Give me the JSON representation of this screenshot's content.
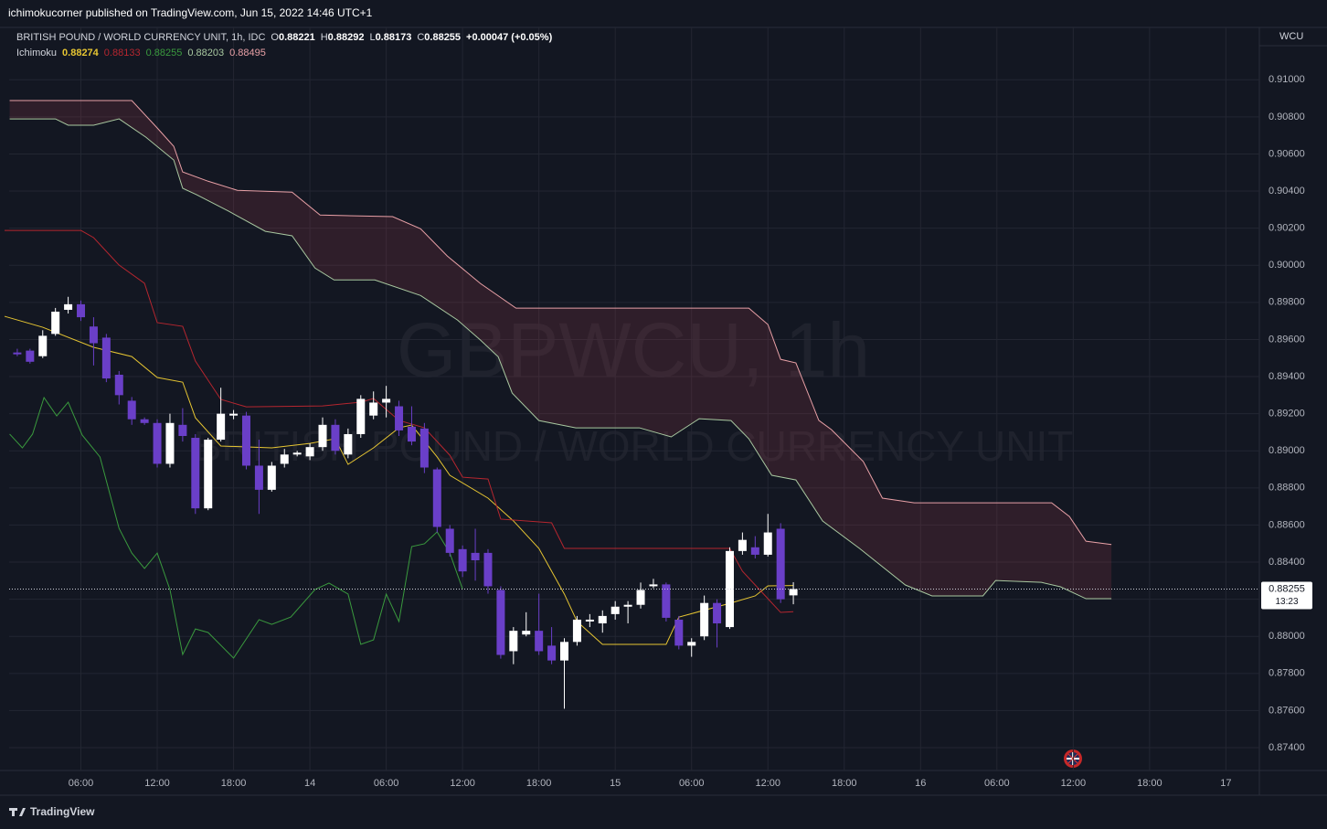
{
  "publisher": "ichimokucorner published on TradingView.com, Jun 15, 2022 14:46 UTC+1",
  "footer": "TradingView",
  "chart_data": {
    "type": "candlestick",
    "symbol": "BRITISH POUND / WORLD CURRENCY UNIT, 1h, IDC",
    "ohlc_legend": [
      {
        "label": "O",
        "value": "0.88221"
      },
      {
        "label": "H",
        "value": "0.88292"
      },
      {
        "label": "L",
        "value": "0.88173"
      },
      {
        "label": "C",
        "value": "0.88255"
      }
    ],
    "change": "+0.00047 (+0.05%)",
    "indicator": {
      "name": "Ichimoku",
      "values": [
        "0.88274",
        "0.88133",
        "0.88255",
        "0.88203",
        "0.88495"
      ]
    },
    "watermark": "GBPWCU, 1h",
    "watermark_subtitle": "BRITISH POUND / WORLD CURRENCY UNIT",
    "currency": "WCU",
    "price_label": "0.88255",
    "countdown": "13:23",
    "up_color": "#ffffff",
    "down_color": "#6a3fc8",
    "cloud_color": "rgba(150,60,75,0.22)",
    "grid": true,
    "xlim": [
      0.36,
      98.63
    ],
    "ylim": [
      0.87277,
      0.91282
    ],
    "xticks": [
      {
        "value": 6,
        "label": "06:00"
      },
      {
        "value": 12,
        "label": "12:00"
      },
      {
        "value": 18,
        "label": "18:00"
      },
      {
        "value": 24,
        "label": "14"
      },
      {
        "value": 30,
        "label": "06:00"
      },
      {
        "value": 36,
        "label": "12:00"
      },
      {
        "value": 42,
        "label": "18:00"
      },
      {
        "value": 48,
        "label": "15"
      },
      {
        "value": 54,
        "label": "06:00"
      },
      {
        "value": 60,
        "label": "12:00"
      },
      {
        "value": 66,
        "label": "18:00"
      },
      {
        "value": 72,
        "label": "16"
      },
      {
        "value": 78,
        "label": "06:00"
      },
      {
        "value": 84,
        "label": "12:00"
      },
      {
        "value": 90,
        "label": "18:00"
      },
      {
        "value": 96,
        "label": "17"
      }
    ],
    "yticks": [
      {
        "value": 0.874,
        "label": "0.87400"
      },
      {
        "value": 0.876,
        "label": "0.87600"
      },
      {
        "value": 0.878,
        "label": "0.87800"
      },
      {
        "value": 0.88,
        "label": "0.88000"
      },
      {
        "value": 0.882,
        "label": "0.88200"
      },
      {
        "value": 0.884,
        "label": "0.88400"
      },
      {
        "value": 0.886,
        "label": "0.88600"
      },
      {
        "value": 0.888,
        "label": "0.88800"
      },
      {
        "value": 0.89,
        "label": "0.89000"
      },
      {
        "value": 0.892,
        "label": "0.89200"
      },
      {
        "value": 0.894,
        "label": "0.89400"
      },
      {
        "value": 0.896,
        "label": "0.89600"
      },
      {
        "value": 0.898,
        "label": "0.89800"
      },
      {
        "value": 0.9,
        "label": "0.90000"
      },
      {
        "value": 0.902,
        "label": "0.90200"
      },
      {
        "value": 0.904,
        "label": "0.90400"
      },
      {
        "value": 0.906,
        "label": "0.90600"
      },
      {
        "value": 0.908,
        "label": "0.90800"
      },
      {
        "value": 0.91,
        "label": "0.91000"
      }
    ],
    "x": [
      1,
      2,
      3,
      4,
      5,
      6,
      7,
      8,
      9,
      10,
      11,
      12,
      13,
      14,
      15,
      16,
      17,
      18,
      19,
      20,
      21,
      22,
      23,
      24,
      25,
      26,
      27,
      28,
      29,
      30,
      31,
      32,
      33,
      34,
      35,
      36,
      37,
      38,
      39,
      40,
      41,
      42,
      43,
      44,
      45,
      46,
      47,
      48,
      49,
      50,
      51,
      52,
      53,
      54,
      55,
      56,
      57,
      58,
      59,
      60,
      61,
      62
    ],
    "open": [
      0.8953,
      0.8954,
      0.8951,
      0.8963,
      0.8976,
      0.8979,
      0.8967,
      0.8961,
      0.8941,
      0.8927,
      0.8917,
      0.8915,
      0.8893,
      0.8914,
      0.8907,
      0.8869,
      0.8906,
      0.8919,
      0.8919,
      0.8892,
      0.8879,
      0.8893,
      0.8898,
      0.8897,
      0.8902,
      0.8914,
      0.8898,
      0.8909,
      0.8919,
      0.8926,
      0.8924,
      0.8913,
      0.8912,
      0.889,
      0.8858,
      0.8847,
      0.8845,
      0.8845,
      0.8825,
      0.8792,
      0.8801,
      0.8803,
      0.8795,
      0.8787,
      0.8797,
      0.8808,
      0.8807,
      0.8812,
      0.8816,
      0.8817,
      0.8827,
      0.8828,
      0.8809,
      0.8795,
      0.88,
      0.8818,
      0.8805,
      0.8846,
      0.8848,
      0.8844,
      0.8858,
      0.88221
    ],
    "high": [
      0.8955,
      0.8955,
      0.8965,
      0.8977,
      0.8983,
      0.8981,
      0.8972,
      0.8963,
      0.8943,
      0.8929,
      0.8918,
      0.8917,
      0.892,
      0.8923,
      0.8909,
      0.8907,
      0.8934,
      0.8922,
      0.8921,
      0.8906,
      0.8894,
      0.8901,
      0.89,
      0.8904,
      0.8918,
      0.8917,
      0.8912,
      0.893,
      0.8932,
      0.8935,
      0.8927,
      0.8924,
      0.8915,
      0.8891,
      0.886,
      0.8849,
      0.8858,
      0.8847,
      0.8827,
      0.8805,
      0.8813,
      0.8823,
      0.8805,
      0.8799,
      0.8811,
      0.8812,
      0.8814,
      0.8819,
      0.8819,
      0.8829,
      0.8831,
      0.8829,
      0.8811,
      0.8799,
      0.8822,
      0.882,
      0.8848,
      0.8856,
      0.8854,
      0.8866,
      0.8861,
      0.88292
    ],
    "low": [
      0.8951,
      0.8947,
      0.895,
      0.8962,
      0.8974,
      0.897,
      0.8946,
      0.8937,
      0.8925,
      0.8914,
      0.8914,
      0.8891,
      0.8891,
      0.8905,
      0.8866,
      0.8868,
      0.8905,
      0.8917,
      0.889,
      0.8866,
      0.8878,
      0.8891,
      0.8897,
      0.8895,
      0.89,
      0.8898,
      0.8896,
      0.8907,
      0.8917,
      0.8918,
      0.8908,
      0.8903,
      0.8888,
      0.8856,
      0.8843,
      0.8832,
      0.883,
      0.8823,
      0.8788,
      0.8785,
      0.88,
      0.879,
      0.8785,
      0.8761,
      0.8795,
      0.8805,
      0.8802,
      0.8809,
      0.8807,
      0.8815,
      0.8826,
      0.8808,
      0.8793,
      0.8789,
      0.8798,
      0.8794,
      0.8804,
      0.8844,
      0.8842,
      0.8843,
      0.8818,
      0.88173
    ],
    "close": [
      0.8952,
      0.8948,
      0.8962,
      0.8975,
      0.8979,
      0.8972,
      0.8958,
      0.8939,
      0.893,
      0.8917,
      0.8915,
      0.8893,
      0.8915,
      0.8908,
      0.8869,
      0.8906,
      0.892,
      0.892,
      0.8892,
      0.8879,
      0.8892,
      0.8898,
      0.8899,
      0.8902,
      0.8914,
      0.89,
      0.8909,
      0.8928,
      0.8926,
      0.8928,
      0.8911,
      0.8905,
      0.8891,
      0.8859,
      0.8845,
      0.8835,
      0.8841,
      0.8827,
      0.879,
      0.8803,
      0.8803,
      0.8792,
      0.8787,
      0.8797,
      0.8809,
      0.8809,
      0.8811,
      0.8816,
      0.8817,
      0.8825,
      0.8828,
      0.881,
      0.8795,
      0.8797,
      0.8818,
      0.8807,
      0.8846,
      0.8852,
      0.8844,
      0.8856,
      0.882,
      0.88255
    ],
    "series": [
      {
        "color": "#e6c532",
        "x": [
          0,
          3,
          7,
          10,
          12,
          14,
          15,
          17,
          21,
          24,
          26,
          27,
          29,
          31,
          32,
          34,
          35,
          38,
          40,
          42,
          44,
          45,
          47,
          52,
          53,
          57,
          59,
          60,
          62
        ],
        "values": [
          0.89725,
          0.89666,
          0.89558,
          0.89508,
          0.89395,
          0.8937,
          0.89178,
          0.89026,
          0.89016,
          0.8904,
          0.89065,
          0.88927,
          0.89016,
          0.89124,
          0.89139,
          0.88967,
          0.88868,
          0.88745,
          0.88622,
          0.88474,
          0.88228,
          0.8808,
          0.87957,
          0.87957,
          0.88104,
          0.88178,
          0.88218,
          0.88272,
          0.88274
        ]
      },
      {
        "color": "#b5262f",
        "x": [
          0,
          6,
          7,
          9,
          11,
          12,
          14,
          15,
          17,
          19,
          25,
          28,
          29,
          31,
          33,
          35,
          36,
          38,
          39,
          43,
          44,
          57,
          58,
          60,
          61,
          62
        ],
        "values": [
          0.90188,
          0.90188,
          0.90149,
          0.90001,
          0.89903,
          0.89691,
          0.89671,
          0.89484,
          0.89277,
          0.89237,
          0.89242,
          0.89262,
          0.89282,
          0.89164,
          0.89124,
          0.88976,
          0.88858,
          0.88848,
          0.88632,
          0.88612,
          0.88474,
          0.88474,
          0.88351,
          0.88203,
          0.88129,
          0.88133
        ]
      },
      {
        "color": "#3a9a3e",
        "x": [
          0.4,
          1.4,
          2.2,
          3.1,
          4.1,
          5,
          6.1,
          7.5,
          9,
          10,
          11,
          12,
          13,
          14,
          15,
          16,
          18,
          20,
          21,
          22.5,
          24.4,
          25.5,
          27,
          28,
          29,
          30,
          31,
          32,
          33,
          34,
          35,
          36
        ],
        "values": [
          0.8909,
          0.89016,
          0.8909,
          0.89287,
          0.89188,
          0.89262,
          0.89085,
          0.88967,
          0.88582,
          0.88449,
          0.88366,
          0.88449,
          0.88252,
          0.87902,
          0.8804,
          0.88021,
          0.87883,
          0.8809,
          0.88065,
          0.88104,
          0.88252,
          0.88287,
          0.88228,
          0.87957,
          0.87981,
          0.88228,
          0.8808,
          0.88484,
          0.88499,
          0.88563,
          0.88449,
          0.88255
        ]
      },
      {
        "color": "#a8c8a0",
        "x": [
          0.4,
          4,
          5,
          7,
          9,
          11.1,
          13.3,
          14,
          15.1,
          17.6,
          20.5,
          22.6,
          24.4,
          25.9,
          29.1,
          32.7,
          35.6,
          37.4,
          38.8,
          39.9,
          42,
          44.9,
          49.9,
          52.4,
          54.6,
          57.1,
          58.5,
          60.3,
          62.2,
          64.3,
          67.2,
          70.8,
          72.9,
          76.9,
          77.9,
          81.5,
          83,
          85,
          87
        ],
        "values": [
          0.90789,
          0.90789,
          0.90755,
          0.90755,
          0.90789,
          0.90691,
          0.90567,
          0.90415,
          0.9038,
          0.90292,
          0.90183,
          0.90159,
          0.89985,
          0.89921,
          0.89921,
          0.89837,
          0.89705,
          0.89597,
          0.89507,
          0.89311,
          0.89163,
          0.89124,
          0.89124,
          0.89075,
          0.89173,
          0.89163,
          0.89065,
          0.88868,
          0.88843,
          0.88622,
          0.88474,
          0.88277,
          0.88218,
          0.88218,
          0.88301,
          0.88291,
          0.88267,
          0.88203,
          0.88203
        ]
      },
      {
        "color": "#e8a0a6",
        "x": [
          0.4,
          10,
          12,
          13.3,
          14,
          16,
          18.3,
          22.6,
          24.8,
          30.5,
          32.7,
          34.8,
          37.4,
          40.2,
          58.5,
          60,
          61,
          62.2,
          64,
          65,
          67.5,
          69,
          71.5,
          82.3,
          83.7,
          85,
          87
        ],
        "values": [
          0.90888,
          0.90888,
          0.9074,
          0.90641,
          0.90503,
          0.90453,
          0.90404,
          0.90394,
          0.90271,
          0.90262,
          0.90197,
          0.9005,
          0.89902,
          0.89769,
          0.89769,
          0.89681,
          0.89493,
          0.89474,
          0.89164,
          0.89114,
          0.88942,
          0.88745,
          0.8872,
          0.8872,
          0.88646,
          0.88513,
          0.88495
        ]
      }
    ]
  }
}
